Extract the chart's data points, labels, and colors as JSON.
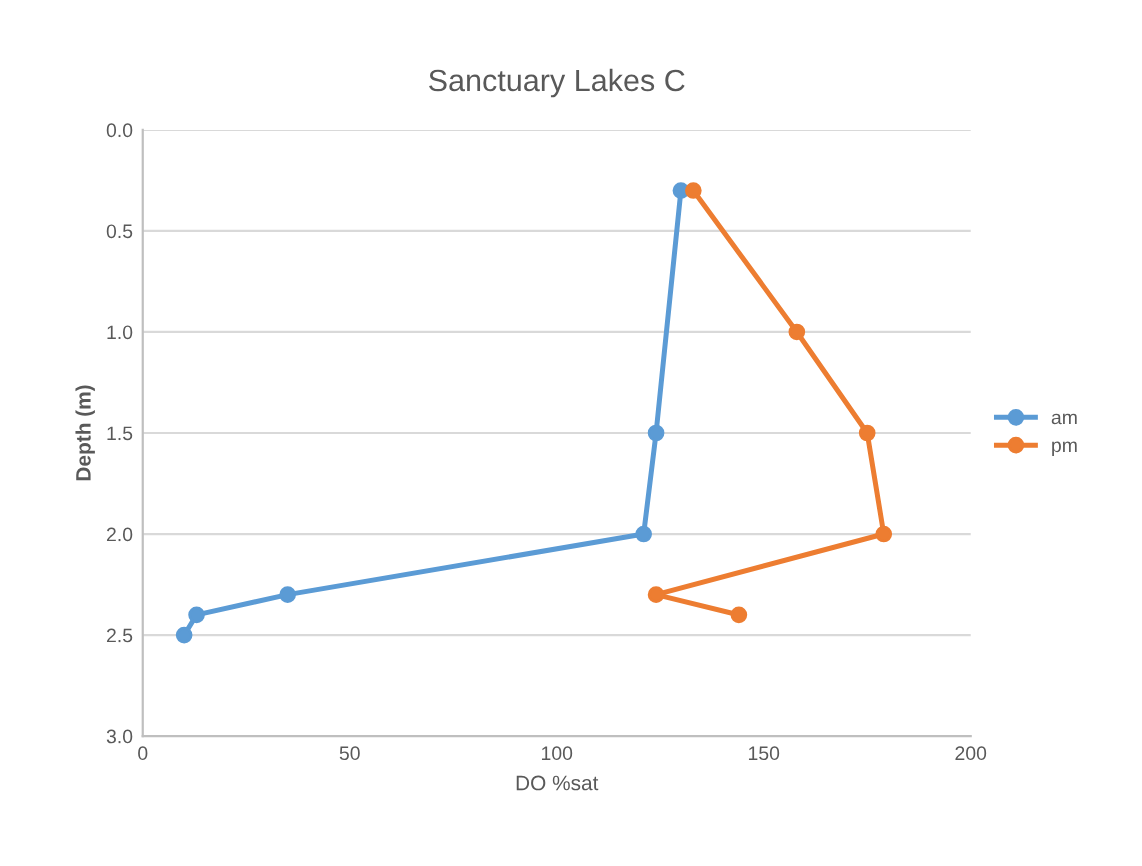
{
  "chart_data": {
    "type": "line",
    "title": "Sanctuary Lakes C",
    "xlabel": "DO %sat",
    "ylabel": "Depth (m)",
    "series": [
      {
        "name": "am",
        "color": "#5b9bd5",
        "x": [
          130,
          124,
          121,
          35,
          13,
          10
        ],
        "values": [
          0.3,
          1.5,
          2.0,
          2.3,
          2.4,
          2.5
        ]
      },
      {
        "name": "pm",
        "color": "#ed7d31",
        "x": [
          133,
          158,
          175,
          179,
          124,
          144
        ],
        "values": [
          0.3,
          1.0,
          1.5,
          2.0,
          2.3,
          2.4
        ]
      }
    ],
    "xlim": [
      0,
      200
    ],
    "xticks": [
      0,
      50,
      100,
      150,
      200
    ],
    "ylim": [
      3.0,
      0.0
    ],
    "yticks": [
      {
        "value": 0,
        "label": "0.0"
      },
      {
        "value": 0.5,
        "label": "0.5"
      },
      {
        "value": 1.0,
        "label": "1.0"
      },
      {
        "value": 1.5,
        "label": "1.5"
      },
      {
        "value": 2.0,
        "label": "2.0"
      },
      {
        "value": 2.5,
        "label": "2.5"
      },
      {
        "value": 3.0,
        "label": "3.0"
      }
    ],
    "grid": "y",
    "legend": "right",
    "marker": "circle",
    "line_style": "solid"
  }
}
